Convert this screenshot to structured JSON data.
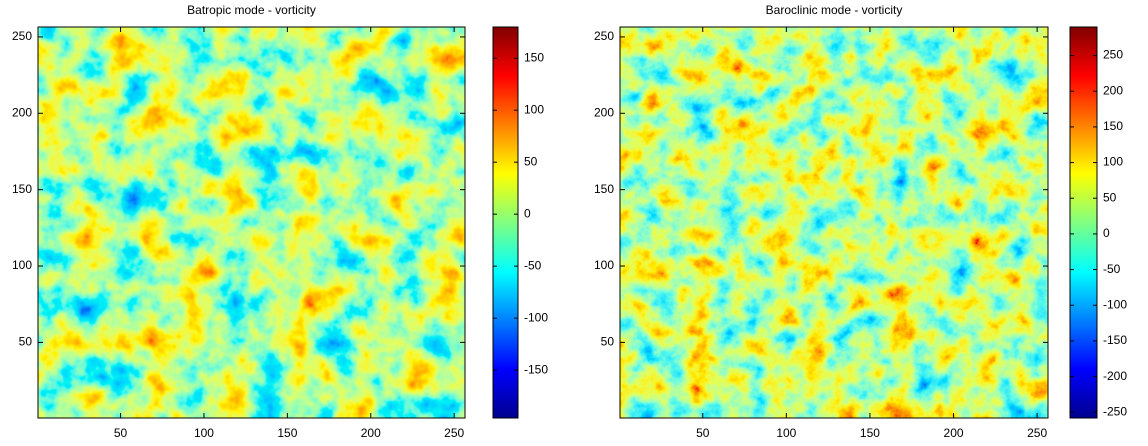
{
  "chart_data": [
    {
      "type": "heatmap",
      "title": "Batropic mode - vorticity",
      "colormap": "jet",
      "xlim": [
        0.5,
        256.5
      ],
      "xticks": [
        50,
        100,
        150,
        200,
        250
      ],
      "ylim": [
        0.5,
        256.5
      ],
      "yticks": [
        50,
        100,
        150,
        200,
        250
      ],
      "clim": [
        -196,
        180
      ],
      "cticks": [
        -150,
        -100,
        -50,
        0,
        50,
        100,
        150
      ]
    },
    {
      "type": "heatmap",
      "title": "Baroclinic mode - vorticity",
      "colormap": "jet",
      "xlim": [
        0.5,
        256.5
      ],
      "xticks": [
        50,
        100,
        150,
        200,
        250
      ],
      "ylim": [
        0.5,
        256.5
      ],
      "yticks": [
        50,
        100,
        150,
        200,
        250
      ],
      "clim": [
        -258,
        290
      ],
      "cticks": [
        -250,
        -200,
        -150,
        -100,
        -50,
        0,
        50,
        100,
        150,
        200,
        250
      ]
    }
  ]
}
